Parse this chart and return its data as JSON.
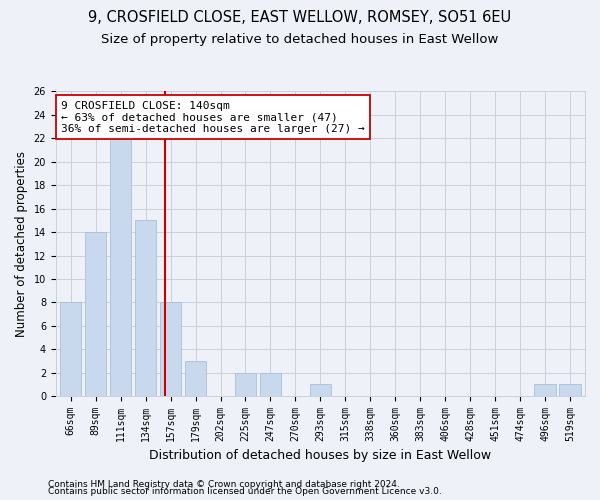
{
  "title1": "9, CROSFIELD CLOSE, EAST WELLOW, ROMSEY, SO51 6EU",
  "title2": "Size of property relative to detached houses in East Wellow",
  "xlabel": "Distribution of detached houses by size in East Wellow",
  "ylabel": "Number of detached properties",
  "categories": [
    "66sqm",
    "89sqm",
    "111sqm",
    "134sqm",
    "157sqm",
    "179sqm",
    "202sqm",
    "225sqm",
    "247sqm",
    "270sqm",
    "293sqm",
    "315sqm",
    "338sqm",
    "360sqm",
    "383sqm",
    "406sqm",
    "428sqm",
    "451sqm",
    "474sqm",
    "496sqm",
    "519sqm"
  ],
  "values": [
    8,
    14,
    22,
    15,
    8,
    3,
    0,
    2,
    2,
    0,
    1,
    0,
    0,
    0,
    0,
    0,
    0,
    0,
    0,
    1,
    1
  ],
  "bar_color": "#c8d9ee",
  "bar_edge_color": "#a8c0dc",
  "vline_position": 3.77,
  "vline_color": "#cc0000",
  "annotation_line1": "9 CROSFIELD CLOSE: 140sqm",
  "annotation_line2": "← 63% of detached houses are smaller (47)",
  "annotation_line3": "36% of semi-detached houses are larger (27) →",
  "annotation_box_color": "#ffffff",
  "annotation_box_edge": "#cc0000",
  "ylim": [
    0,
    26
  ],
  "yticks": [
    0,
    2,
    4,
    6,
    8,
    10,
    12,
    14,
    16,
    18,
    20,
    22,
    24,
    26
  ],
  "footer1": "Contains HM Land Registry data © Crown copyright and database right 2024.",
  "footer2": "Contains public sector information licensed under the Open Government Licence v3.0.",
  "bg_color": "#eef2f8",
  "plot_bg_color": "#eef2f8",
  "grid_color": "#c8d0dc",
  "title_fontsize": 10.5,
  "subtitle_fontsize": 9.5,
  "ylabel_fontsize": 8.5,
  "xlabel_fontsize": 9,
  "tick_fontsize": 7,
  "footer_fontsize": 6.5,
  "annot_fontsize": 8
}
